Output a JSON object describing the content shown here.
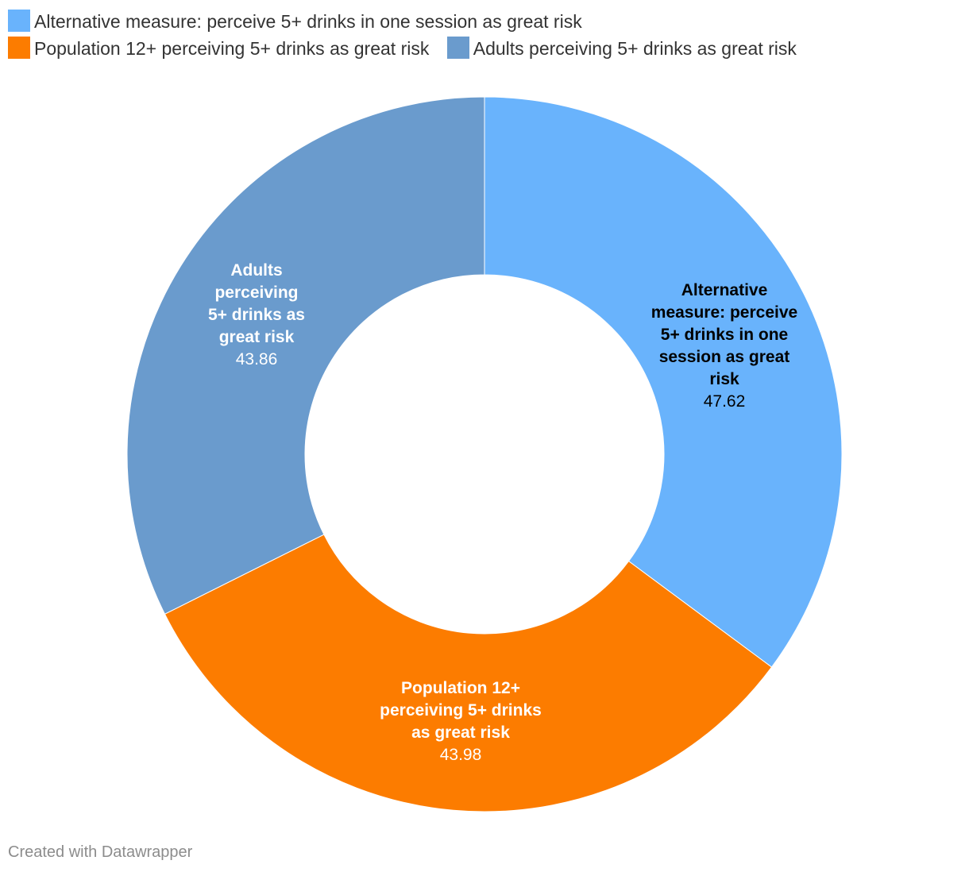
{
  "chart_data": {
    "type": "pie",
    "variant": "donut",
    "categories": [
      "Alternative measure: perceive 5+ drinks in one session as great risk",
      "Population 12+ perceiving 5+ drinks as great risk",
      "Adults perceiving 5+ drinks as great risk"
    ],
    "values": [
      47.62,
      43.98,
      43.86
    ],
    "value_labels": [
      "47.62",
      "43.98",
      "43.86"
    ],
    "colors": [
      "#69b3fc",
      "#fc7c00",
      "#6a9bcd"
    ],
    "label_colors": [
      "#000000",
      "#ffffff",
      "#ffffff"
    ],
    "legend_placement": "top-left"
  },
  "legend": {
    "items": [
      {
        "label": "Alternative measure: perceive 5+ drinks in one session as great risk",
        "color": "#69b3fc"
      },
      {
        "label": "Population 12+ perceiving 5+ drinks as great risk",
        "color": "#fc7c00"
      },
      {
        "label": "Adults perceiving 5+ drinks as great risk",
        "color": "#6a9bcd"
      }
    ]
  },
  "footer": {
    "credit": "Created with Datawrapper"
  }
}
